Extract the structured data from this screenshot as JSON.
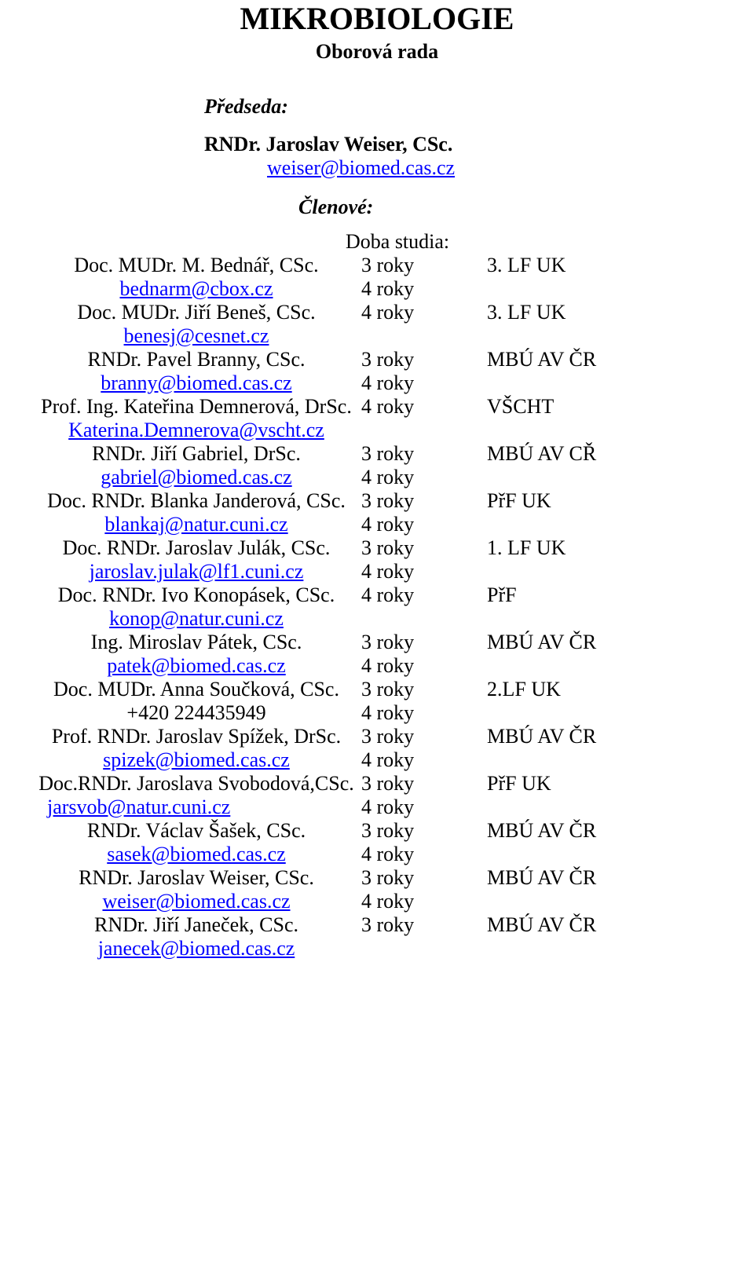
{
  "colors": {
    "text": "#000000",
    "link": "#0000ff",
    "background": "#ffffff"
  },
  "typography": {
    "font_family": "Times New Roman",
    "title_fontsize": 40,
    "body_fontsize": 26
  },
  "header": {
    "title": "MIKROBIOLOGIE",
    "subtitle": "Oborová rada"
  },
  "chair": {
    "label": "Předseda:",
    "name": "RNDr. Jaroslav Weiser, CSc.",
    "email": "weiser@biomed.cas.cz"
  },
  "members_label": "Členové:",
  "duration_header": "Doba studia:",
  "members": [
    {
      "name": "Doc. MUDr. M. Bednář, CSc.",
      "contact": "bednarm@cbox.cz",
      "is_email": true,
      "dur1": "3 roky",
      "dur2": "4 roky",
      "affil": "3. LF UK",
      "email_align": "center"
    },
    {
      "name": "Doc. MUDr. Jiří Beneš, CSc.",
      "contact": "benesj@cesnet.cz",
      "is_email": true,
      "dur1": "4 roky",
      "dur2": "",
      "affil": "3. LF UK",
      "email_align": "center"
    },
    {
      "name": "RNDr. Pavel Branny, CSc.",
      "contact": "branny@biomed.cas.cz",
      "is_email": true,
      "dur1": "3 roky",
      "dur2": "4 roky",
      "affil": "MBÚ AV ČR",
      "email_align": "center"
    },
    {
      "name": "Prof. Ing. Kateřina Demnerová, DrSc.",
      "contact": "Katerina.Demnerova@vscht.cz",
      "is_email": true,
      "dur1": "4 roky",
      "dur2": "",
      "affil": "VŠCHT",
      "email_align": "center"
    },
    {
      "name": "RNDr. Jiří Gabriel, DrSc.",
      "contact": "gabriel@biomed.cas.cz",
      "is_email": true,
      "dur1": "3 roky",
      "dur2": "4 roky",
      "affil": "MBÚ AV CŘ",
      "email_align": "center"
    },
    {
      "name": "Doc. RNDr. Blanka Janderová, CSc.",
      "contact": "blankaj@natur.cuni.cz",
      "is_email": true,
      "dur1": "3 roky",
      "dur2": "4 roky",
      "affil": "PřF UK",
      "email_align": "center"
    },
    {
      "name": "Doc. RNDr. Jaroslav Julák, CSc.",
      "contact": "jaroslav.julak@lf1.cuni.cz",
      "is_email": true,
      "dur1": "3 roky",
      "dur2": "4 roky",
      "affil": "1. LF UK",
      "email_align": "center"
    },
    {
      "name": "Doc. RNDr. Ivo Konopásek, CSc.",
      "contact": "konop@natur.cuni.cz",
      "is_email": true,
      "dur1": "4 roky",
      "dur2": "",
      "affil": "PřF",
      "email_align": "center"
    },
    {
      "name": "Ing. Miroslav Pátek, CSc.",
      "contact": "patek@biomed.cas.cz",
      "is_email": true,
      "dur1": "3 roky",
      "dur2": "4 roky",
      "affil": "MBÚ AV ČR",
      "email_align": "center"
    },
    {
      "name": "Doc. MUDr. Anna Součková, CSc.",
      "contact": "+420 224435949",
      "is_email": false,
      "dur1": "3 roky",
      "dur2": "4 roky",
      "affil": "2.LF UK",
      "email_align": "center"
    },
    {
      "name": "Prof. RNDr. Jaroslav Spížek, DrSc.",
      "contact": "spizek@biomed.cas.cz",
      "is_email": true,
      "dur1": "3 roky",
      "dur2": "4 roky",
      "affil": "MBÚ AV ČR",
      "email_align": "center"
    },
    {
      "name": "Doc.RNDr. Jaroslava Svobodová,CSc.",
      "contact": "jarsvob@natur.cuni.cz",
      "is_email": true,
      "dur1": "3 roky",
      "dur2": "4 roky",
      "affil": "PřF UK",
      "email_align": "left"
    },
    {
      "name": "RNDr. Václav Šašek, CSc.",
      "contact": "sasek@biomed.cas.cz",
      "is_email": true,
      "dur1": "3 roky",
      "dur2": "4 roky",
      "affil": "MBÚ AV ČR",
      "email_align": "center"
    },
    {
      "name": "RNDr. Jaroslav Weiser, CSc.",
      "contact": "weiser@biomed.cas.cz",
      "is_email": true,
      "dur1": "3 roky",
      "dur2": "4 roky",
      "affil": "MBÚ AV ČR",
      "email_align": "center"
    },
    {
      "name": "RNDr. Jiří Janeček, CSc.",
      "contact": "janecek@biomed.cas.cz",
      "is_email": true,
      "dur1": "3 roky",
      "dur2": "",
      "affil": "MBÚ AV ČR",
      "email_align": "center"
    }
  ]
}
